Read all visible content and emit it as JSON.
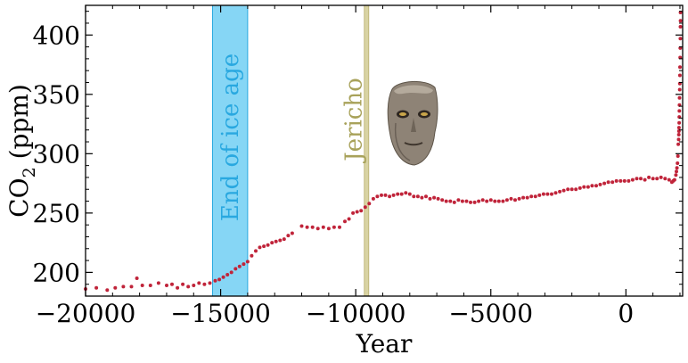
{
  "chart_data": {
    "type": "scatter",
    "xlabel": "Year",
    "ylabel_main": "CO",
    "ylabel_sub": "2",
    "ylabel_rest": " (ppm)",
    "xlim": [
      -20000,
      2100
    ],
    "ylim": [
      180,
      425
    ],
    "xticks": [
      -20000,
      -15000,
      -10000,
      -5000,
      0
    ],
    "xtick_labels": [
      "−20000",
      "−15000",
      "−10000",
      "−5000",
      "0"
    ],
    "yticks": [
      200,
      250,
      300,
      350,
      400
    ],
    "ytick_labels": [
      "200",
      "250",
      "300",
      "350",
      "400"
    ],
    "grid": false,
    "marker_color": "#c0243a",
    "annotations": {
      "ice_age": {
        "label": "End of ice age",
        "x_start": -15300,
        "x_end": -14000,
        "fill": "#86d6f5",
        "edge": "#2aa9e0",
        "text_color": "#29a8e0"
      },
      "jericho": {
        "label": "Jericho",
        "x": -9600,
        "fill": "#d9d3a3",
        "edge": "#b7ad6c",
        "text_color": "#a8a25a"
      },
      "image_desc": "plastered skull artifact"
    },
    "series": [
      {
        "values": [
          [
            -20000,
            186
          ],
          [
            -19600,
            187
          ],
          [
            -19200,
            185
          ],
          [
            -18900,
            187
          ],
          [
            -18600,
            188
          ],
          [
            -18300,
            188
          ],
          [
            -18100,
            195
          ],
          [
            -17900,
            189
          ],
          [
            -17600,
            189
          ],
          [
            -17300,
            191
          ],
          [
            -17000,
            189
          ],
          [
            -16800,
            190
          ],
          [
            -16600,
            187
          ],
          [
            -16400,
            190
          ],
          [
            -16200,
            188
          ],
          [
            -16000,
            189
          ],
          [
            -15800,
            191
          ],
          [
            -15600,
            190
          ],
          [
            -15400,
            191
          ],
          [
            -15200,
            193
          ],
          [
            -15050,
            194
          ],
          [
            -14900,
            196
          ],
          [
            -14750,
            198
          ],
          [
            -14600,
            200
          ],
          [
            -14450,
            203
          ],
          [
            -14300,
            205
          ],
          [
            -14150,
            207
          ],
          [
            -14000,
            209
          ],
          [
            -13850,
            214
          ],
          [
            -13700,
            218
          ],
          [
            -13550,
            221
          ],
          [
            -13400,
            222
          ],
          [
            -13250,
            223
          ],
          [
            -13100,
            225
          ],
          [
            -12950,
            226
          ],
          [
            -12800,
            227
          ],
          [
            -12650,
            228
          ],
          [
            -12500,
            231
          ],
          [
            -12350,
            233
          ],
          [
            -12000,
            239
          ],
          [
            -11800,
            238
          ],
          [
            -11600,
            238
          ],
          [
            -11400,
            237
          ],
          [
            -11200,
            238
          ],
          [
            -11000,
            237
          ],
          [
            -10800,
            238
          ],
          [
            -10600,
            238
          ],
          [
            -10400,
            243
          ],
          [
            -10250,
            245
          ],
          [
            -10100,
            250
          ],
          [
            -9950,
            251
          ],
          [
            -9800,
            252
          ],
          [
            -9650,
            255
          ],
          [
            -9500,
            258
          ],
          [
            -9350,
            262
          ],
          [
            -9200,
            264
          ],
          [
            -9050,
            265
          ],
          [
            -8900,
            265
          ],
          [
            -8750,
            264
          ],
          [
            -8600,
            265
          ],
          [
            -8450,
            266
          ],
          [
            -8300,
            266
          ],
          [
            -8150,
            267
          ],
          [
            -8000,
            266
          ],
          [
            -7850,
            264
          ],
          [
            -7700,
            264
          ],
          [
            -7550,
            263
          ],
          [
            -7400,
            264
          ],
          [
            -7250,
            262
          ],
          [
            -7100,
            263
          ],
          [
            -6950,
            262
          ],
          [
            -6800,
            261
          ],
          [
            -6650,
            260
          ],
          [
            -6500,
            260
          ],
          [
            -6350,
            259
          ],
          [
            -6200,
            261
          ],
          [
            -6050,
            260
          ],
          [
            -5900,
            260
          ],
          [
            -5750,
            259
          ],
          [
            -5600,
            259
          ],
          [
            -5450,
            260
          ],
          [
            -5300,
            261
          ],
          [
            -5150,
            260
          ],
          [
            -5000,
            261
          ],
          [
            -4850,
            260
          ],
          [
            -4700,
            260
          ],
          [
            -4550,
            260
          ],
          [
            -4400,
            261
          ],
          [
            -4250,
            262
          ],
          [
            -4100,
            261
          ],
          [
            -3950,
            262
          ],
          [
            -3800,
            263
          ],
          [
            -3650,
            263
          ],
          [
            -3500,
            264
          ],
          [
            -3350,
            264
          ],
          [
            -3200,
            265
          ],
          [
            -3050,
            266
          ],
          [
            -2900,
            266
          ],
          [
            -2750,
            266
          ],
          [
            -2600,
            267
          ],
          [
            -2450,
            268
          ],
          [
            -2300,
            269
          ],
          [
            -2150,
            270
          ],
          [
            -2000,
            270
          ],
          [
            -1850,
            270
          ],
          [
            -1700,
            271
          ],
          [
            -1550,
            272
          ],
          [
            -1400,
            272
          ],
          [
            -1250,
            273
          ],
          [
            -1100,
            273
          ],
          [
            -950,
            274
          ],
          [
            -800,
            275
          ],
          [
            -650,
            276
          ],
          [
            -500,
            276
          ],
          [
            -350,
            277
          ],
          [
            -200,
            277
          ],
          [
            -50,
            277
          ],
          [
            100,
            277
          ],
          [
            250,
            278
          ],
          [
            400,
            279
          ],
          [
            550,
            279
          ],
          [
            700,
            278
          ],
          [
            850,
            280
          ],
          [
            1000,
            279
          ],
          [
            1150,
            279
          ],
          [
            1300,
            280
          ],
          [
            1450,
            279
          ],
          [
            1600,
            278
          ],
          [
            1700,
            276
          ],
          [
            1750,
            277
          ],
          [
            1800,
            278
          ],
          [
            1850,
            282
          ],
          [
            1870,
            285
          ],
          [
            1890,
            288
          ],
          [
            1910,
            292
          ],
          [
            1925,
            298
          ],
          [
            1940,
            308
          ],
          [
            1950,
            312
          ],
          [
            1958,
            316
          ],
          [
            1962,
            319
          ],
          [
            1966,
            322
          ],
          [
            1970,
            326
          ],
          [
            1974,
            331
          ],
          [
            1978,
            336
          ],
          [
            1982,
            341
          ],
          [
            1986,
            347
          ],
          [
            1990,
            354
          ],
          [
            1994,
            359
          ],
          [
            1998,
            366
          ],
          [
            2002,
            373
          ],
          [
            2006,
            381
          ],
          [
            2010,
            389
          ],
          [
            2014,
            397
          ],
          [
            2018,
            407
          ],
          [
            2020,
            412
          ],
          [
            2022,
            419
          ]
        ]
      }
    ]
  }
}
